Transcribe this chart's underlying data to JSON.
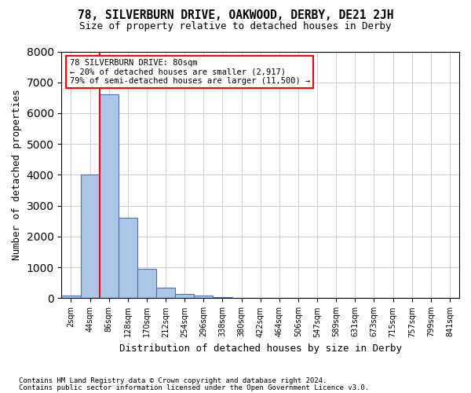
{
  "title": "78, SILVERBURN DRIVE, OAKWOOD, DERBY, DE21 2JH",
  "subtitle": "Size of property relative to detached houses in Derby",
  "xlabel": "Distribution of detached houses by size in Derby",
  "ylabel": "Number of detached properties",
  "footer_line1": "Contains HM Land Registry data © Crown copyright and database right 2024.",
  "footer_line2": "Contains public sector information licensed under the Open Government Licence v3.0.",
  "bin_labels": [
    "2sqm",
    "44sqm",
    "86sqm",
    "128sqm",
    "170sqm",
    "212sqm",
    "254sqm",
    "296sqm",
    "338sqm",
    "380sqm",
    "422sqm",
    "464sqm",
    "506sqm",
    "547sqm",
    "589sqm",
    "631sqm",
    "673sqm",
    "715sqm",
    "757sqm",
    "799sqm",
    "841sqm"
  ],
  "bar_values": [
    100,
    4000,
    6600,
    2600,
    950,
    330,
    130,
    80,
    30,
    15,
    8,
    4,
    3,
    2,
    1,
    1,
    1,
    0,
    0,
    0,
    0
  ],
  "bar_color": "#aec6e8",
  "bar_edge_color": "#4472c4",
  "vline_color": "red",
  "annotation_text": "78 SILVERBURN DRIVE: 80sqm\n← 20% of detached houses are smaller (2,917)\n79% of semi-detached houses are larger (11,500) →",
  "annotation_box_color": "white",
  "annotation_box_edge_color": "red",
  "ylim": [
    0,
    8000
  ],
  "yticks": [
    0,
    1000,
    2000,
    3000,
    4000,
    5000,
    6000,
    7000,
    8000
  ],
  "grid_color": "#cccccc",
  "background_color": "white"
}
